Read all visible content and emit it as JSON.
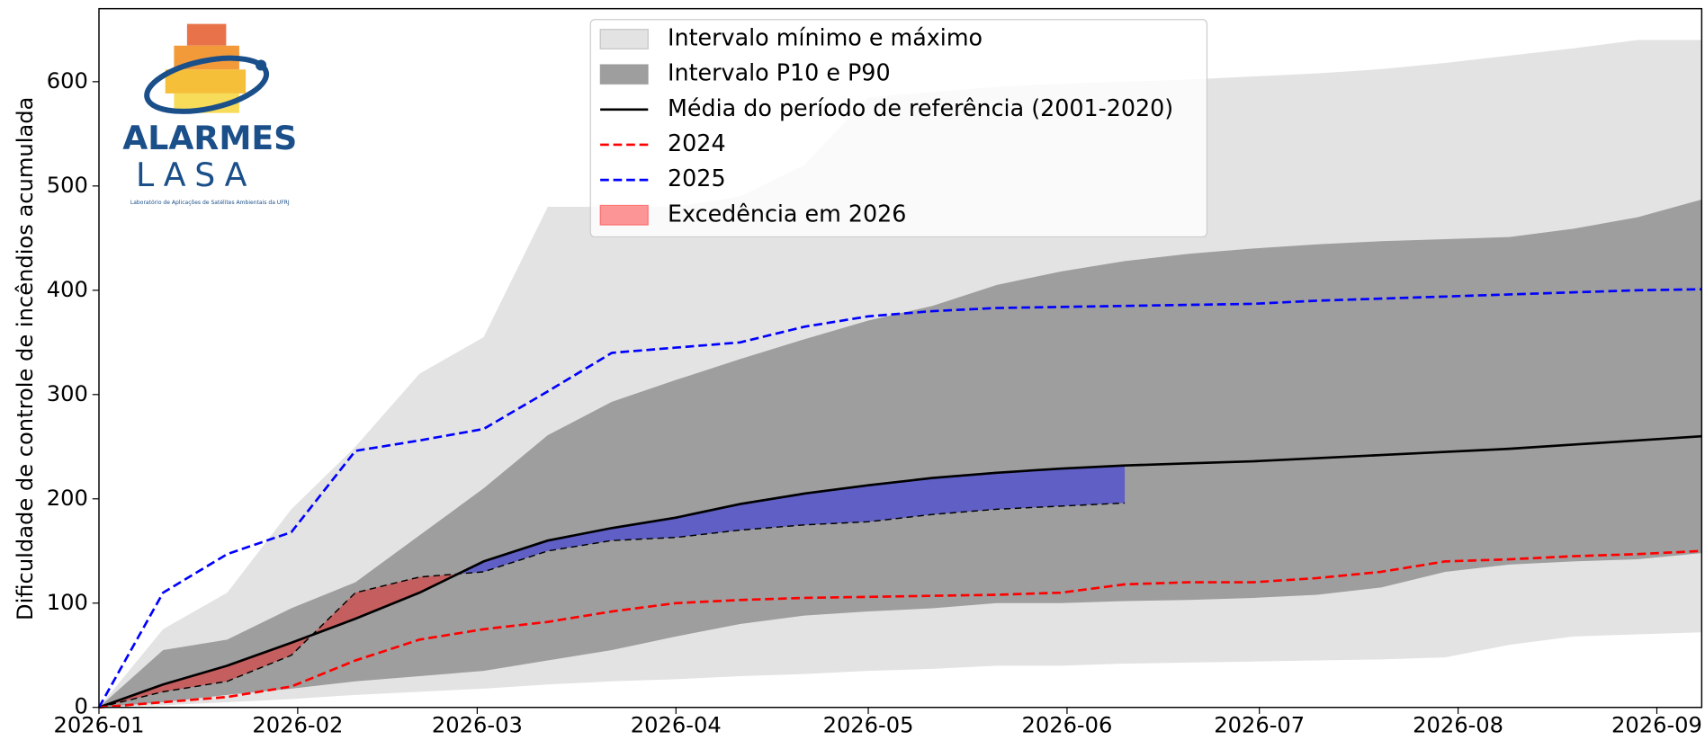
{
  "chart_data": {
    "type": "area_band",
    "y_label": "Dificuldade de controle de incêndios acumulada",
    "x": [
      0,
      10,
      20,
      30,
      40,
      50,
      60,
      70,
      80,
      90,
      100,
      110,
      120,
      130,
      140,
      150,
      160,
      170,
      180,
      190,
      200,
      210,
      220,
      230,
      240,
      250
    ],
    "xlim": [
      0,
      250
    ],
    "xticks": [
      {
        "value": 0,
        "label": "2026-01"
      },
      {
        "value": 31,
        "label": "2026-02"
      },
      {
        "value": 59,
        "label": "2026-03"
      },
      {
        "value": 90,
        "label": "2026-04"
      },
      {
        "value": 120,
        "label": "2026-05"
      },
      {
        "value": 151,
        "label": "2026-06"
      },
      {
        "value": 181,
        "label": "2026-07"
      },
      {
        "value": 212,
        "label": "2026-08"
      },
      {
        "value": 243,
        "label": "2026-09"
      }
    ],
    "ylim": [
      0,
      670
    ],
    "yticks": [
      0,
      100,
      200,
      300,
      400,
      500,
      600
    ],
    "legend": "upper center",
    "series": [
      {
        "name": "Intervalo mínimo e máximo",
        "kind": "band",
        "color": "#e3e3e3",
        "lower": [
          0,
          2,
          5,
          8,
          12,
          15,
          18,
          22,
          25,
          27,
          30,
          32,
          35,
          37,
          40,
          40,
          42,
          43,
          44,
          45,
          46,
          48,
          60,
          68,
          70,
          72
        ],
        "upper": [
          0,
          75,
          110,
          190,
          250,
          320,
          355,
          480,
          480,
          480,
          490,
          520,
          585,
          590,
          595,
          598,
          600,
          602,
          605,
          608,
          612,
          618,
          625,
          632,
          640,
          640
        ]
      },
      {
        "name": "Intervalo P10 e P90",
        "kind": "band",
        "color": "#9e9e9e",
        "lower": [
          0,
          5,
          12,
          18,
          25,
          30,
          35,
          45,
          55,
          68,
          80,
          88,
          92,
          95,
          100,
          100,
          102,
          103,
          105,
          108,
          115,
          130,
          137,
          140,
          142,
          148
        ],
        "upper": [
          0,
          55,
          65,
          95,
          120,
          165,
          210,
          261,
          293,
          314,
          334,
          353,
          371,
          385,
          405,
          418,
          428,
          435,
          440,
          444,
          447,
          449,
          451,
          459,
          470,
          487
        ]
      },
      {
        "name": "Média do período de referência (2001-2020)",
        "kind": "line",
        "color": "#000000",
        "dashed": false,
        "values": [
          0,
          22,
          40,
          62,
          85,
          110,
          140,
          160,
          172,
          182,
          195,
          205,
          213,
          220,
          225,
          229,
          232,
          234,
          236,
          239,
          242,
          245,
          248,
          252,
          256,
          260
        ]
      },
      {
        "name": "2024",
        "kind": "line",
        "color": "#ff0000",
        "dashed": true,
        "values": [
          0,
          5,
          10,
          20,
          45,
          65,
          75,
          82,
          92,
          100,
          103,
          105,
          106,
          107,
          108,
          110,
          118,
          120,
          120,
          124,
          130,
          140,
          142,
          145,
          147,
          150
        ]
      },
      {
        "name": "2025",
        "kind": "line",
        "color": "#0000ff",
        "dashed": true,
        "values": [
          0,
          110,
          147,
          168,
          246,
          256,
          267,
          303,
          340,
          345,
          350,
          365,
          375,
          380,
          383,
          384,
          385,
          386,
          387,
          390,
          392,
          394,
          396,
          398,
          400,
          401
        ]
      },
      {
        "name": "Excedência em 2026",
        "kind": "exceedance",
        "color": "#ff0000",
        "below_color": "#0000ff",
        "opacity": 0.4,
        "reference": 2,
        "values": [
          0,
          15,
          25,
          50,
          110,
          125,
          130,
          150,
          160,
          163,
          170,
          175,
          178,
          185,
          190,
          193,
          196,
          null,
          null,
          null,
          null,
          null,
          null,
          null,
          null,
          null
        ]
      }
    ]
  },
  "logo": {
    "title": "ALARMES",
    "subtitle": "LASA",
    "caption": "Laboratório de Aplicações de Satélites Ambientais da UFRJ"
  }
}
